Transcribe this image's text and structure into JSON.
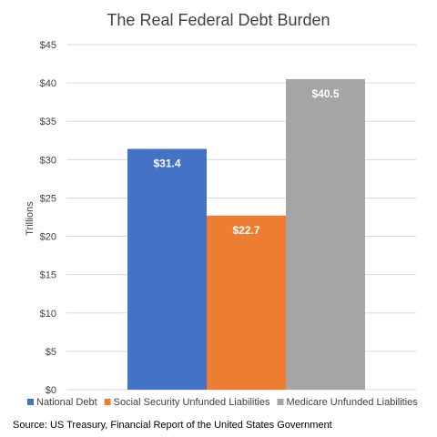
{
  "chart_data": {
    "type": "bar",
    "title": "The Real Federal Debt Burden",
    "ylabel": "Trillions",
    "ylim": [
      0,
      45
    ],
    "yticks": [
      0,
      5,
      10,
      15,
      20,
      25,
      30,
      35,
      40,
      45
    ],
    "ytick_labels": [
      "$0",
      "$5",
      "$10",
      "$15",
      "$20",
      "$25",
      "$30",
      "$35",
      "$40",
      "$45"
    ],
    "grid": true,
    "legend_position": "bottom",
    "series": [
      {
        "name": "National Debt",
        "value": 31.4,
        "label": "$31.4",
        "color": "#4472c4"
      },
      {
        "name": "Social Security Unfunded Liabilities",
        "value": 22.7,
        "label": "$22.7",
        "color": "#ed7d31"
      },
      {
        "name": "Medicare Unfunded Liabilities",
        "value": 40.5,
        "label": "$40.5",
        "color": "#a5a5a5"
      }
    ],
    "source": "Source: US Treasury, Financial Report of the United States Government"
  }
}
